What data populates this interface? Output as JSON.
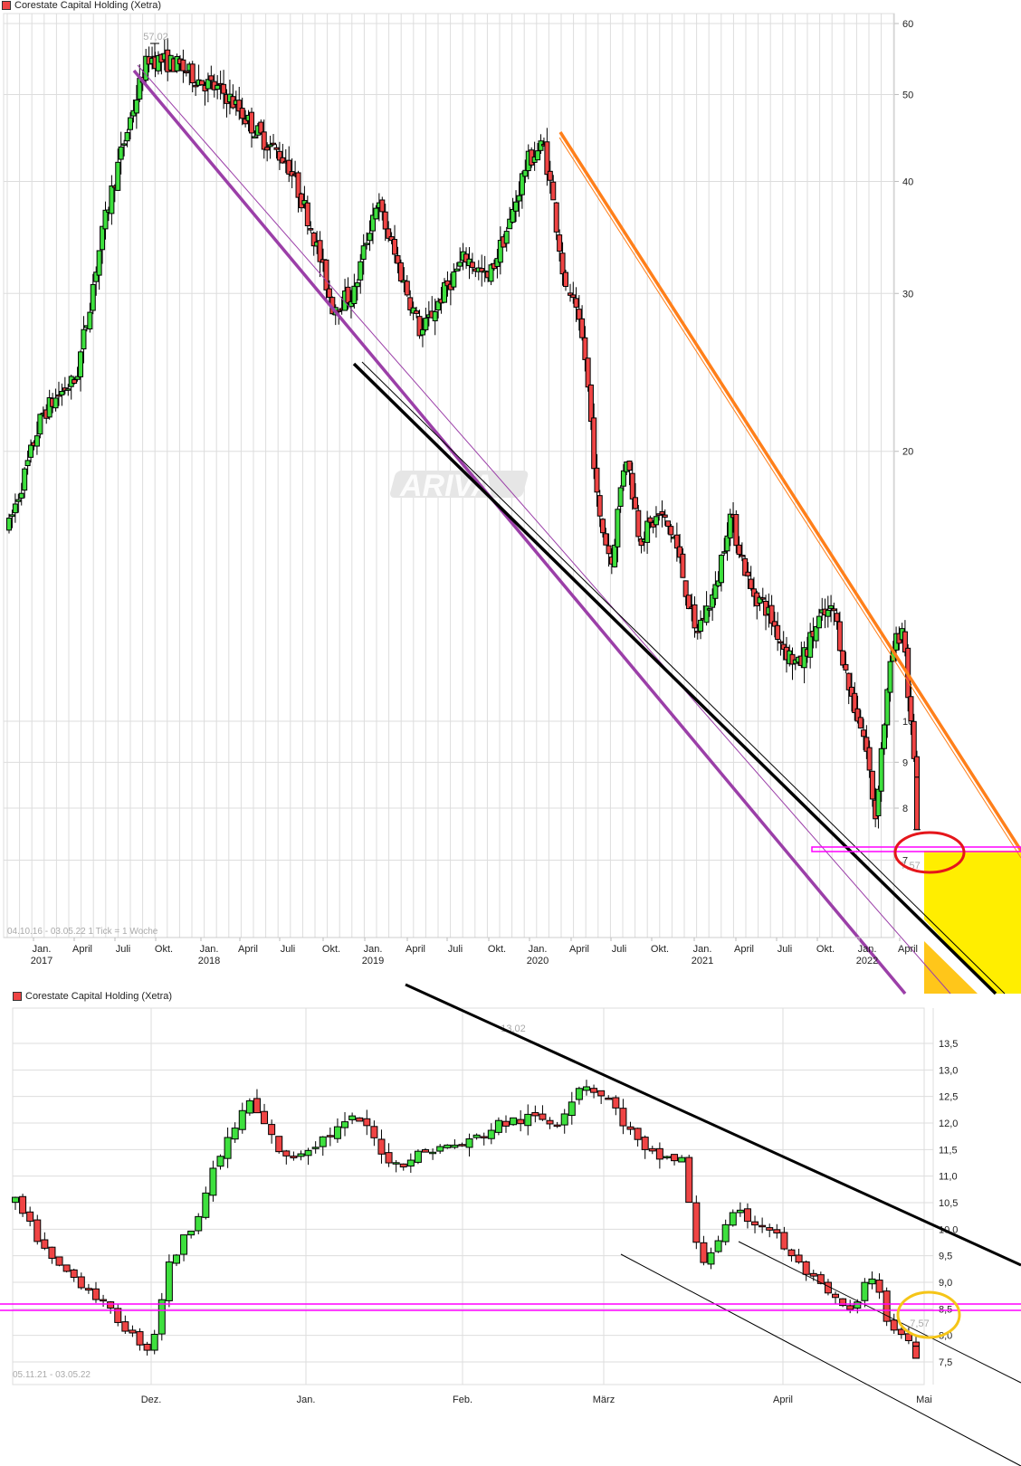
{
  "chart_data": [
    {
      "type": "candlestick",
      "title": "Corestate Capital Holding (Xetra)",
      "legend": [
        "Corestate Capital Holding (Xetra)"
      ],
      "legend_color": "#ef4444",
      "info_text": "04.10.16 - 03.05.22   1 Tick = 1 Woche",
      "range": "04.10.16 - 03.05.22",
      "tick": "1 Tick = 1 Woche",
      "y_scale": "log",
      "yticks": [
        60,
        50,
        40,
        30,
        20,
        10,
        9,
        8,
        7
      ],
      "ylim": [
        5.5,
        62
      ],
      "xticks": [
        {
          "label": "Jan.",
          "year": "2017"
        },
        {
          "label": "April"
        },
        {
          "label": "Juli"
        },
        {
          "label": "Okt."
        },
        {
          "label": "Jan.",
          "year": "2018"
        },
        {
          "label": "April"
        },
        {
          "label": "Juli"
        },
        {
          "label": "Okt."
        },
        {
          "label": "Jan.",
          "year": "2019"
        },
        {
          "label": "April"
        },
        {
          "label": "Juli"
        },
        {
          "label": "Okt."
        },
        {
          "label": "Jan.",
          "year": "2020"
        },
        {
          "label": "April"
        },
        {
          "label": "Juli"
        },
        {
          "label": "Okt."
        },
        {
          "label": "Jan.",
          "year": "2021"
        },
        {
          "label": "April"
        },
        {
          "label": "Juli"
        },
        {
          "label": "Okt."
        },
        {
          "label": "Jan.",
          "year": "2022"
        },
        {
          "label": "April"
        }
      ],
      "annotations": [
        {
          "text": "57,02",
          "type": "high_label"
        },
        {
          "text": "7,57",
          "type": "low_label"
        }
      ],
      "watermark": "ARIVA",
      "grid": true,
      "colors": {
        "up": "#3ee03e",
        "down": "#ef4444",
        "support_band": "#ff00ff",
        "upper_channel": "#ff7f1a",
        "lower_channel_purple": "#9b3fa8",
        "trend_black": "#000000",
        "highlight_yellow": "#ffee00",
        "highlight_orange": "#ffc61a",
        "circle": "#e5161b"
      },
      "key_points": [
        {
          "date": "Okt. 2016",
          "close": 16.5
        },
        {
          "date": "Jan. 2017",
          "close": 24
        },
        {
          "date": "Juli 2017",
          "close": 55
        },
        {
          "date": "Aug. 2017",
          "high": 57.02
        },
        {
          "date": "Jan. 2018",
          "close": 52
        },
        {
          "date": "Okt. 2018",
          "close": 38
        },
        {
          "date": "Jan. 2019",
          "close": 29
        },
        {
          "date": "April 2019",
          "close": 38
        },
        {
          "date": "Juli 2019",
          "close": 27
        },
        {
          "date": "Okt. 2019",
          "close": 33
        },
        {
          "date": "Feb. 2020",
          "close": 44
        },
        {
          "date": "März 2020",
          "close": 26
        },
        {
          "date": "April 2020",
          "close": 17
        },
        {
          "date": "Juli 2020",
          "close": 16
        },
        {
          "date": "Okt. 2020",
          "close": 12.5
        },
        {
          "date": "Jan. 2021",
          "close": 14
        },
        {
          "date": "April 2021",
          "close": 12
        },
        {
          "date": "Juli 2021",
          "close": 13
        },
        {
          "date": "Okt. 2021",
          "close": 10
        },
        {
          "date": "Nov. 2021",
          "close": 7.8
        },
        {
          "date": "Feb. 2022",
          "close": 12.5
        },
        {
          "date": "April 2022",
          "close": 9
        },
        {
          "date": "Mai 2022",
          "low": 7.57
        }
      ]
    },
    {
      "type": "candlestick",
      "title": "Corestate Capital Holding (Xetra)",
      "legend": [
        "Corestate Capital Holding (Xetra)"
      ],
      "legend_color": "#ef4444",
      "info_text": "05.11.21 - 03.05.22",
      "range": "05.11.21 - 03.05.22",
      "y_scale": "linear",
      "yticks": [
        "13,5",
        "13,0",
        "12,5",
        "12,0",
        "11,5",
        "11,0",
        "10,5",
        "10,0",
        "9,5",
        "9,0",
        "8,5",
        "8,0",
        "7,5"
      ],
      "ylim": [
        7.4,
        13.6
      ],
      "xticks": [
        "Dez.",
        "Jan.",
        "Feb.",
        "März",
        "April",
        "Mai"
      ],
      "annotations": [
        {
          "text": "13,02",
          "type": "high_label"
        },
        {
          "text": "7,57",
          "type": "low_label"
        }
      ],
      "grid": true,
      "key_points": [
        {
          "date": "05.11.21",
          "close": 10.4
        },
        {
          "date": "Ende Nov. 21",
          "low": 7.6
        },
        {
          "date": "Anf. Dez. 21",
          "close": 9.5
        },
        {
          "date": "Mitte Dez. 21",
          "high": 12.7
        },
        {
          "date": "Feb. 22",
          "high": 13.02
        },
        {
          "date": "März 22",
          "close": 9.4
        },
        {
          "date": "April 22",
          "close": 9.0
        },
        {
          "date": "Ende April 22",
          "close": 8.1
        },
        {
          "date": "03.05.22",
          "low": 7.57
        }
      ]
    }
  ]
}
